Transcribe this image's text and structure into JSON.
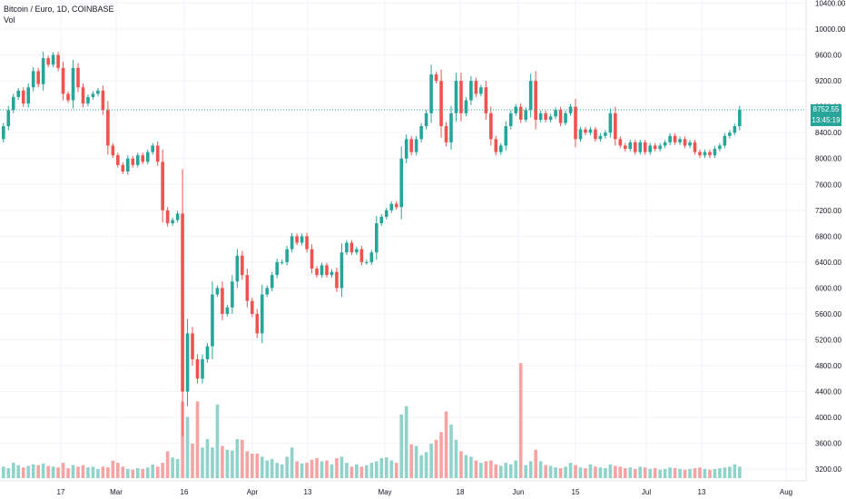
{
  "legend": {
    "symbol_line": "Bitcoin / Euro, 1D, COINBASE",
    "vol_label": "Vol"
  },
  "price_tags": {
    "last_price": "8752.55",
    "countdown": "13:45:19"
  },
  "colors": {
    "up": "#26a69a",
    "down": "#ef5350",
    "vol_up": "#8fd3cb",
    "vol_down": "#f5a3a3",
    "last_price_line": "#26a69a"
  },
  "chart_data": {
    "type": "candlestick",
    "title": "Bitcoin / Euro, 1D, COINBASE",
    "y_axis": {
      "ticks": [
        "10400.00",
        "10000.00",
        "9600.00",
        "9200.00",
        "8800.00",
        "8400.00",
        "8000.00",
        "7600.00",
        "7200.00",
        "6800.00",
        "6400.00",
        "6000.00",
        "5600.00",
        "5200.00",
        "4800.00",
        "4400.00",
        "4000.00",
        "3600.00",
        "3200.00"
      ],
      "range": [
        3000,
        10450
      ]
    },
    "x_axis": {
      "ticks": [
        "17",
        "Mar",
        "16",
        "Apr",
        "13",
        "May",
        "18",
        "Jun",
        "15",
        "Jul",
        "13",
        "Aug"
      ]
    },
    "last_price": 8752.55,
    "series": [
      {
        "o": 8300,
        "c": 8500,
        "v": 150
      },
      {
        "o": 8500,
        "c": 8750,
        "v": 130
      },
      {
        "o": 8750,
        "c": 8950,
        "v": 200
      },
      {
        "o": 8950,
        "c": 9050,
        "v": 170
      },
      {
        "o": 9050,
        "c": 8850,
        "v": 140
      },
      {
        "o": 8850,
        "c": 9100,
        "v": 160
      },
      {
        "o": 9100,
        "c": 9350,
        "v": 180
      },
      {
        "o": 9350,
        "c": 9150,
        "v": 170
      },
      {
        "o": 9150,
        "c": 9550,
        "v": 190
      },
      {
        "o": 9550,
        "c": 9450,
        "v": 160
      },
      {
        "o": 9450,
        "c": 9600,
        "v": 150
      },
      {
        "o": 9600,
        "c": 9400,
        "v": 140
      },
      {
        "o": 9400,
        "c": 9000,
        "v": 200
      },
      {
        "o": 9000,
        "c": 8900,
        "v": 130
      },
      {
        "o": 8900,
        "c": 9400,
        "v": 170
      },
      {
        "o": 9400,
        "c": 9100,
        "v": 150
      },
      {
        "o": 9100,
        "c": 8850,
        "v": 170
      },
      {
        "o": 8850,
        "c": 8950,
        "v": 140
      },
      {
        "o": 8950,
        "c": 9000,
        "v": 150
      },
      {
        "o": 9000,
        "c": 9050,
        "v": 120
      },
      {
        "o": 9050,
        "c": 8750,
        "v": 150
      },
      {
        "o": 8750,
        "c": 8200,
        "v": 140
      },
      {
        "o": 8200,
        "c": 8050,
        "v": 230
      },
      {
        "o": 8050,
        "c": 7900,
        "v": 200
      },
      {
        "o": 7900,
        "c": 7800,
        "v": 150
      },
      {
        "o": 7800,
        "c": 8000,
        "v": 120
      },
      {
        "o": 8000,
        "c": 7900,
        "v": 110
      },
      {
        "o": 7900,
        "c": 8050,
        "v": 130
      },
      {
        "o": 8050,
        "c": 7950,
        "v": 120
      },
      {
        "o": 7950,
        "c": 8100,
        "v": 140
      },
      {
        "o": 8100,
        "c": 8200,
        "v": 180
      },
      {
        "o": 8200,
        "c": 7950,
        "v": 150
      },
      {
        "o": 7950,
        "c": 7200,
        "v": 200
      },
      {
        "o": 7200,
        "c": 7000,
        "v": 350
      },
      {
        "o": 7000,
        "c": 7050,
        "v": 270
      },
      {
        "o": 7050,
        "c": 7150,
        "v": 250
      },
      {
        "o": 7150,
        "c": 4400,
        "v": 1000
      },
      {
        "o": 4400,
        "c": 5300,
        "v": 800
      },
      {
        "o": 5300,
        "c": 4900,
        "v": 450
      },
      {
        "o": 4900,
        "c": 4600,
        "v": 1000
      },
      {
        "o": 4600,
        "c": 4900,
        "v": 400
      },
      {
        "o": 4900,
        "c": 5100,
        "v": 510
      },
      {
        "o": 5100,
        "c": 5900,
        "v": 400
      },
      {
        "o": 5900,
        "c": 6000,
        "v": 960
      },
      {
        "o": 6000,
        "c": 5600,
        "v": 420
      },
      {
        "o": 5600,
        "c": 5700,
        "v": 370
      },
      {
        "o": 5700,
        "c": 6100,
        "v": 360
      },
      {
        "o": 6100,
        "c": 6500,
        "v": 510
      },
      {
        "o": 6500,
        "c": 6200,
        "v": 500
      },
      {
        "o": 6200,
        "c": 5800,
        "v": 350
      },
      {
        "o": 5800,
        "c": 5600,
        "v": 320
      },
      {
        "o": 5600,
        "c": 5300,
        "v": 320
      },
      {
        "o": 5300,
        "c": 5900,
        "v": 280
      },
      {
        "o": 5900,
        "c": 6000,
        "v": 230
      },
      {
        "o": 6000,
        "c": 6200,
        "v": 250
      },
      {
        "o": 6200,
        "c": 6400,
        "v": 200
      },
      {
        "o": 6400,
        "c": 6400,
        "v": 180
      },
      {
        "o": 6400,
        "c": 6600,
        "v": 280
      },
      {
        "o": 6600,
        "c": 6800,
        "v": 400
      },
      {
        "o": 6800,
        "c": 6700,
        "v": 220
      },
      {
        "o": 6700,
        "c": 6800,
        "v": 190
      },
      {
        "o": 6800,
        "c": 6600,
        "v": 200
      },
      {
        "o": 6600,
        "c": 6300,
        "v": 240
      },
      {
        "o": 6300,
        "c": 6200,
        "v": 260
      },
      {
        "o": 6200,
        "c": 6350,
        "v": 220
      },
      {
        "o": 6350,
        "c": 6200,
        "v": 230
      },
      {
        "o": 6200,
        "c": 6250,
        "v": 180
      },
      {
        "o": 6250,
        "c": 6000,
        "v": 260
      },
      {
        "o": 6000,
        "c": 6550,
        "v": 280
      },
      {
        "o": 6550,
        "c": 6700,
        "v": 200
      },
      {
        "o": 6700,
        "c": 6550,
        "v": 150
      },
      {
        "o": 6550,
        "c": 6600,
        "v": 180
      },
      {
        "o": 6600,
        "c": 6400,
        "v": 150
      },
      {
        "o": 6400,
        "c": 6400,
        "v": 170
      },
      {
        "o": 6400,
        "c": 6550,
        "v": 200
      },
      {
        "o": 6550,
        "c": 7000,
        "v": 220
      },
      {
        "o": 7000,
        "c": 7100,
        "v": 260
      },
      {
        "o": 7100,
        "c": 7200,
        "v": 270
      },
      {
        "o": 7200,
        "c": 7300,
        "v": 230
      },
      {
        "o": 7300,
        "c": 7250,
        "v": 200
      },
      {
        "o": 7250,
        "c": 8000,
        "v": 830
      },
      {
        "o": 8000,
        "c": 8300,
        "v": 940
      },
      {
        "o": 8300,
        "c": 8100,
        "v": 440
      },
      {
        "o": 8100,
        "c": 8300,
        "v": 420
      },
      {
        "o": 8300,
        "c": 8500,
        "v": 300
      },
      {
        "o": 8500,
        "c": 8700,
        "v": 340
      },
      {
        "o": 8700,
        "c": 9300,
        "v": 450
      },
      {
        "o": 9300,
        "c": 9200,
        "v": 500
      },
      {
        "o": 9200,
        "c": 8500,
        "v": 600
      },
      {
        "o": 8500,
        "c": 8250,
        "v": 870
      },
      {
        "o": 8250,
        "c": 8700,
        "v": 700
      },
      {
        "o": 8700,
        "c": 9200,
        "v": 500
      },
      {
        "o": 9200,
        "c": 8700,
        "v": 350
      },
      {
        "o": 8700,
        "c": 8900,
        "v": 300
      },
      {
        "o": 8900,
        "c": 9200,
        "v": 280
      },
      {
        "o": 9200,
        "c": 9000,
        "v": 230
      },
      {
        "o": 9000,
        "c": 9100,
        "v": 200
      },
      {
        "o": 9100,
        "c": 8700,
        "v": 220
      },
      {
        "o": 8700,
        "c": 8300,
        "v": 230
      },
      {
        "o": 8300,
        "c": 8100,
        "v": 180
      },
      {
        "o": 8100,
        "c": 8200,
        "v": 160
      },
      {
        "o": 8200,
        "c": 8500,
        "v": 200
      },
      {
        "o": 8500,
        "c": 8700,
        "v": 180
      },
      {
        "o": 8700,
        "c": 8800,
        "v": 230
      },
      {
        "o": 8800,
        "c": 8600,
        "v": 1500
      },
      {
        "o": 8600,
        "c": 8750,
        "v": 170
      },
      {
        "o": 8750,
        "c": 9200,
        "v": 220
      },
      {
        "o": 9200,
        "c": 8600,
        "v": 370
      },
      {
        "o": 8600,
        "c": 8700,
        "v": 220
      },
      {
        "o": 8700,
        "c": 8600,
        "v": 170
      },
      {
        "o": 8600,
        "c": 8650,
        "v": 160
      },
      {
        "o": 8650,
        "c": 8750,
        "v": 140
      },
      {
        "o": 8750,
        "c": 8550,
        "v": 130
      },
      {
        "o": 8550,
        "c": 8700,
        "v": 150
      },
      {
        "o": 8700,
        "c": 8800,
        "v": 200
      },
      {
        "o": 8800,
        "c": 8300,
        "v": 170
      },
      {
        "o": 8300,
        "c": 8450,
        "v": 140
      },
      {
        "o": 8450,
        "c": 8400,
        "v": 130
      },
      {
        "o": 8400,
        "c": 8450,
        "v": 180
      },
      {
        "o": 8450,
        "c": 8300,
        "v": 150
      },
      {
        "o": 8300,
        "c": 8350,
        "v": 140
      },
      {
        "o": 8350,
        "c": 8400,
        "v": 130
      },
      {
        "o": 8400,
        "c": 8700,
        "v": 180
      },
      {
        "o": 8700,
        "c": 8300,
        "v": 160
      },
      {
        "o": 8300,
        "c": 8200,
        "v": 150
      },
      {
        "o": 8200,
        "c": 8150,
        "v": 130
      },
      {
        "o": 8150,
        "c": 8250,
        "v": 140
      },
      {
        "o": 8250,
        "c": 8100,
        "v": 120
      },
      {
        "o": 8100,
        "c": 8250,
        "v": 150
      },
      {
        "o": 8250,
        "c": 8100,
        "v": 140
      },
      {
        "o": 8100,
        "c": 8200,
        "v": 120
      },
      {
        "o": 8200,
        "c": 8150,
        "v": 130
      },
      {
        "o": 8150,
        "c": 8200,
        "v": 110
      },
      {
        "o": 8200,
        "c": 8250,
        "v": 120
      },
      {
        "o": 8250,
        "c": 8350,
        "v": 140
      },
      {
        "o": 8350,
        "c": 8250,
        "v": 130
      },
      {
        "o": 8250,
        "c": 8300,
        "v": 120
      },
      {
        "o": 8300,
        "c": 8200,
        "v": 110
      },
      {
        "o": 8200,
        "c": 8250,
        "v": 120
      },
      {
        "o": 8250,
        "c": 8100,
        "v": 130
      },
      {
        "o": 8100,
        "c": 8050,
        "v": 140
      },
      {
        "o": 8050,
        "c": 8100,
        "v": 120
      },
      {
        "o": 8100,
        "c": 8050,
        "v": 110
      },
      {
        "o": 8050,
        "c": 8150,
        "v": 120
      },
      {
        "o": 8150,
        "c": 8200,
        "v": 130
      },
      {
        "o": 8200,
        "c": 8350,
        "v": 140
      },
      {
        "o": 8350,
        "c": 8400,
        "v": 150
      },
      {
        "o": 8400,
        "c": 8500,
        "v": 180
      },
      {
        "o": 8500,
        "c": 8752.55,
        "v": 150
      }
    ]
  }
}
